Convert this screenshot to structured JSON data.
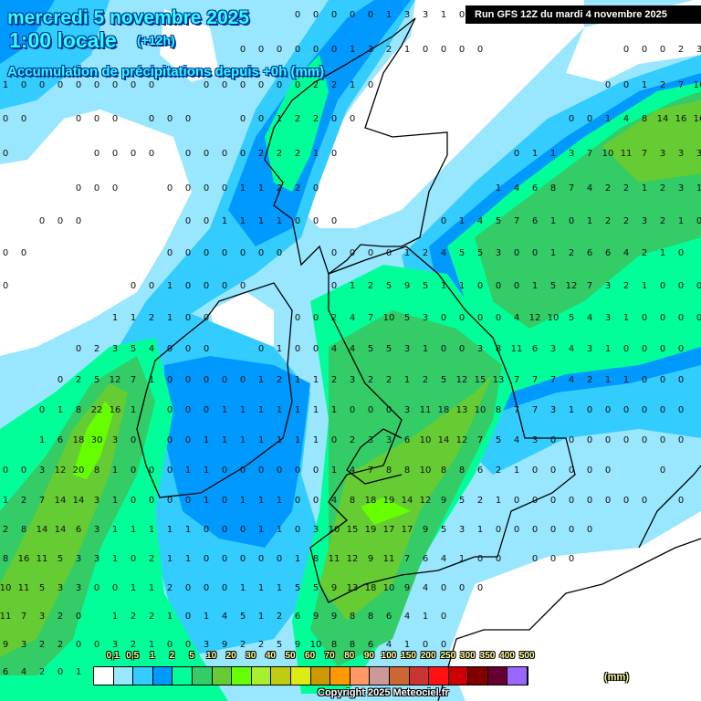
{
  "header": {
    "date": "mercredi 5 novembre 2025",
    "hour": "1:00 locale",
    "lead": "(+12h)",
    "subtitle": "Accumulation de précipitations depuis +0h (mm)",
    "run": "Run GFS 12Z du mardi 4 novembre 2025"
  },
  "legend": {
    "unit": "(mm)",
    "labels": [
      "0,1",
      "0,5",
      "1",
      "2",
      "5",
      "10",
      "20",
      "30",
      "40",
      "50",
      "60",
      "70",
      "80",
      "90",
      "100",
      "150",
      "200",
      "250",
      "300",
      "350",
      "400",
      "500"
    ],
    "colors": [
      "#ffffff",
      "#99e6ff",
      "#33ccff",
      "#0099ff",
      "#00ff99",
      "#33cc66",
      "#66cc33",
      "#66ff00",
      "#a6f02e",
      "#bfcc11",
      "#dded11",
      "#cc9900",
      "#ff9900",
      "#ff9966",
      "#cc9999",
      "#cc6633",
      "#cc3333",
      "#ff1111",
      "#cc0000",
      "#800000",
      "#660033",
      "#9966ff"
    ]
  },
  "copyright": "Copyright 2025 Meteociel.fr",
  "grid_values": [
    {
      "row": 0,
      "cells": {
        "16": "0",
        "17": "0",
        "18": "0",
        "19": "0",
        "20": "0",
        "21": "1",
        "22": "3",
        "23": "3",
        "24": "1",
        "25": "0"
      }
    },
    {
      "row": 1,
      "cells": {
        "13": "0",
        "14": "0",
        "15": "0",
        "16": "0",
        "17": "0",
        "18": "0",
        "19": "1",
        "20": "3",
        "21": "2",
        "22": "1",
        "23": "0",
        "24": "0",
        "25": "0",
        "26": "0",
        "34": "0",
        "35": "0",
        "36": "0",
        "37": "2",
        "38": "3"
      }
    },
    {
      "row": 2,
      "cells": {
        "0": "1",
        "1": "0",
        "2": "0",
        "3": "0",
        "4": "0",
        "5": "0",
        "6": "0",
        "7": "0",
        "8": "0",
        "11": "0",
        "12": "0",
        "13": "0",
        "14": "0",
        "15": "0",
        "16": "0",
        "17": "2",
        "18": "2",
        "19": "1",
        "20": "0",
        "33": "0",
        "34": "0",
        "35": "1",
        "36": "2",
        "37": "7",
        "38": "16"
      }
    },
    {
      "row": 3,
      "cells": {
        "0": "0",
        "1": "0",
        "4": "0",
        "5": "0",
        "6": "0",
        "8": "0",
        "9": "0",
        "10": "0",
        "13": "0",
        "14": "0",
        "15": "1",
        "16": "2",
        "17": "2",
        "18": "0",
        "19": "0",
        "31": "0",
        "32": "0",
        "33": "1",
        "34": "4",
        "35": "8",
        "36": "14",
        "37": "16",
        "38": "16"
      }
    },
    {
      "row": 4,
      "cells": {
        "0": "0",
        "5": "0",
        "6": "0",
        "7": "0",
        "8": "0",
        "10": "0",
        "11": "0",
        "12": "0",
        "13": "0",
        "14": "2",
        "15": "2",
        "16": "2",
        "17": "1",
        "18": "0",
        "28": "0",
        "29": "1",
        "30": "1",
        "31": "3",
        "32": "7",
        "33": "10",
        "34": "11",
        "35": "7",
        "36": "3",
        "37": "3",
        "38": "3"
      }
    },
    {
      "row": 5,
      "cells": {
        "4": "0",
        "5": "0",
        "6": "0",
        "9": "0",
        "10": "0",
        "11": "0",
        "12": "0",
        "13": "1",
        "14": "1",
        "15": "2",
        "16": "2",
        "17": "0",
        "27": "1",
        "28": "4",
        "29": "6",
        "30": "8",
        "31": "7",
        "32": "4",
        "33": "2",
        "34": "2",
        "35": "1",
        "36": "2",
        "37": "3",
        "38": "1"
      }
    },
    {
      "row": 6,
      "cells": {
        "2": "0",
        "3": "0",
        "4": "0",
        "10": "0",
        "11": "0",
        "12": "1",
        "13": "1",
        "14": "1",
        "15": "1",
        "16": "0",
        "17": "0",
        "18": "0",
        "24": "0",
        "25": "1",
        "26": "4",
        "27": "5",
        "28": "7",
        "29": "6",
        "30": "1",
        "31": "0",
        "32": "1",
        "33": "2",
        "34": "2",
        "35": "3",
        "36": "2",
        "37": "1",
        "38": "0"
      }
    },
    {
      "row": 7,
      "cells": {
        "0": "0",
        "1": "0",
        "9": "0",
        "10": "0",
        "11": "0",
        "12": "0",
        "13": "0",
        "14": "0",
        "15": "0",
        "18": "0",
        "19": "0",
        "20": "0",
        "21": "0",
        "22": "1",
        "23": "2",
        "24": "4",
        "25": "5",
        "26": "5",
        "27": "3",
        "28": "0",
        "29": "0",
        "30": "1",
        "31": "2",
        "32": "6",
        "33": "6",
        "34": "4",
        "35": "2",
        "36": "1",
        "37": "0"
      }
    },
    {
      "row": 8,
      "cells": {
        "0": "0",
        "7": "0",
        "8": "0",
        "9": "1",
        "10": "0",
        "11": "0",
        "12": "0",
        "13": "0",
        "18": "0",
        "19": "1",
        "20": "2",
        "21": "5",
        "22": "9",
        "23": "5",
        "24": "1",
        "25": "1",
        "26": "0",
        "27": "0",
        "28": "0",
        "29": "1",
        "30": "5",
        "31": "12",
        "32": "7",
        "33": "3",
        "34": "2",
        "35": "1",
        "36": "0",
        "37": "0",
        "38": "0"
      }
    },
    {
      "row": 9,
      "cells": {
        "6": "1",
        "7": "1",
        "8": "2",
        "9": "1",
        "10": "0",
        "11": "0",
        "16": "0",
        "17": "0",
        "18": "2",
        "19": "4",
        "20": "7",
        "21": "10",
        "22": "5",
        "23": "3",
        "24": "0",
        "25": "0",
        "26": "0",
        "27": "0",
        "28": "4",
        "29": "12",
        "30": "10",
        "31": "5",
        "32": "4",
        "33": "3",
        "34": "1",
        "35": "0",
        "36": "0",
        "37": "0",
        "38": "0"
      }
    },
    {
      "row": 10,
      "cells": {
        "4": "0",
        "5": "2",
        "6": "3",
        "7": "5",
        "8": "4",
        "9": "0",
        "10": "0",
        "11": "0",
        "14": "0",
        "15": "1",
        "16": "0",
        "17": "0",
        "18": "4",
        "19": "4",
        "20": "5",
        "21": "5",
        "22": "3",
        "23": "1",
        "24": "0",
        "25": "0",
        "26": "3",
        "27": "8",
        "28": "11",
        "29": "6",
        "30": "3",
        "31": "4",
        "32": "3",
        "33": "1",
        "34": "0",
        "35": "0",
        "36": "0",
        "37": "0"
      }
    },
    {
      "row": 11,
      "cells": {
        "3": "0",
        "4": "2",
        "5": "5",
        "6": "12",
        "7": "7",
        "8": "1",
        "9": "0",
        "10": "0",
        "11": "0",
        "12": "0",
        "13": "0",
        "14": "1",
        "15": "2",
        "16": "1",
        "17": "1",
        "18": "2",
        "19": "3",
        "20": "2",
        "21": "2",
        "22": "1",
        "23": "2",
        "24": "5",
        "25": "12",
        "26": "15",
        "27": "13",
        "28": "7",
        "29": "7",
        "30": "7",
        "31": "4",
        "32": "2",
        "33": "1",
        "34": "1",
        "35": "0",
        "36": "0",
        "37": "0"
      }
    },
    {
      "row": 12,
      "cells": {
        "2": "0",
        "3": "1",
        "4": "8",
        "5": "22",
        "6": "16",
        "7": "1",
        "9": "0",
        "10": "0",
        "11": "0",
        "12": "1",
        "13": "1",
        "14": "1",
        "15": "1",
        "16": "1",
        "17": "1",
        "18": "1",
        "19": "0",
        "20": "0",
        "21": "0",
        "22": "3",
        "23": "11",
        "24": "18",
        "25": "13",
        "26": "10",
        "27": "8",
        "28": "7",
        "29": "7",
        "30": "3",
        "31": "1",
        "32": "0",
        "33": "0",
        "34": "0",
        "35": "0",
        "36": "0",
        "37": "0"
      }
    },
    {
      "row": 13,
      "cells": {
        "2": "1",
        "3": "6",
        "4": "18",
        "5": "30",
        "6": "3",
        "7": "0",
        "9": "0",
        "10": "0",
        "11": "1",
        "12": "1",
        "13": "1",
        "14": "1",
        "15": "1",
        "16": "1",
        "17": "1",
        "18": "0",
        "19": "2",
        "20": "3",
        "21": "3",
        "22": "6",
        "23": "10",
        "24": "14",
        "25": "12",
        "26": "7",
        "27": "5",
        "28": "4",
        "29": "3",
        "30": "0",
        "31": "0",
        "32": "0",
        "33": "0",
        "34": "0",
        "35": "0",
        "36": "0",
        "37": "0"
      }
    },
    {
      "row": 14,
      "cells": {
        "0": "0",
        "1": "0",
        "2": "3",
        "3": "12",
        "4": "20",
        "5": "8",
        "6": "1",
        "7": "0",
        "8": "0",
        "9": "0",
        "10": "1",
        "11": "1",
        "12": "0",
        "13": "0",
        "14": "0",
        "15": "0",
        "16": "0",
        "17": "0",
        "18": "1",
        "19": "4",
        "20": "7",
        "21": "8",
        "22": "8",
        "23": "10",
        "24": "8",
        "25": "8",
        "26": "6",
        "27": "2",
        "28": "1",
        "29": "0",
        "30": "0",
        "31": "0",
        "32": "0",
        "33": "0",
        "36": "0"
      }
    },
    {
      "row": 15,
      "cells": {
        "0": "1",
        "1": "2",
        "2": "7",
        "3": "14",
        "4": "14",
        "5": "3",
        "6": "1",
        "7": "0",
        "8": "0",
        "9": "0",
        "10": "0",
        "11": "1",
        "12": "0",
        "13": "1",
        "14": "1",
        "15": "1",
        "16": "0",
        "17": "0",
        "18": "4",
        "19": "8",
        "20": "18",
        "21": "19",
        "22": "14",
        "23": "12",
        "24": "9",
        "25": "5",
        "26": "2",
        "27": "1",
        "28": "0",
        "29": "0",
        "30": "0",
        "31": "0",
        "32": "0",
        "33": "0",
        "34": "0",
        "35": "0",
        "37": "0"
      }
    },
    {
      "row": 16,
      "cells": {
        "0": "2",
        "1": "8",
        "2": "14",
        "3": "14",
        "4": "6",
        "5": "3",
        "6": "1",
        "7": "1",
        "8": "1",
        "9": "1",
        "10": "1",
        "11": "0",
        "12": "0",
        "13": "0",
        "14": "1",
        "15": "1",
        "16": "0",
        "17": "3",
        "18": "10",
        "19": "15",
        "20": "19",
        "21": "17",
        "22": "17",
        "23": "9",
        "24": "5",
        "25": "3",
        "26": "1",
        "27": "0",
        "28": "0",
        "29": "0",
        "30": "0",
        "31": "0",
        "32": "0"
      }
    },
    {
      "row": 17,
      "cells": {
        "0": "8",
        "1": "16",
        "2": "11",
        "3": "5",
        "4": "3",
        "5": "3",
        "6": "1",
        "7": "0",
        "8": "2",
        "9": "1",
        "10": "1",
        "11": "0",
        "12": "0",
        "13": "0",
        "14": "0",
        "15": "0",
        "16": "1",
        "17": "8",
        "18": "11",
        "19": "12",
        "20": "9",
        "21": "11",
        "22": "7",
        "23": "6",
        "24": "4",
        "25": "1",
        "26": "0",
        "27": "0",
        "29": "0",
        "30": "0",
        "31": "0"
      }
    },
    {
      "row": 18,
      "cells": {
        "0": "10",
        "1": "11",
        "2": "5",
        "3": "3",
        "4": "3",
        "5": "0",
        "6": "0",
        "7": "1",
        "8": "1",
        "9": "2",
        "10": "0",
        "11": "0",
        "12": "0",
        "13": "1",
        "14": "1",
        "15": "1",
        "16": "5",
        "17": "5",
        "18": "9",
        "19": "13",
        "20": "18",
        "21": "10",
        "22": "9",
        "23": "4",
        "24": "0",
        "25": "0",
        "26": "0"
      }
    },
    {
      "row": 19,
      "cells": {
        "0": "11",
        "1": "7",
        "2": "3",
        "3": "2",
        "4": "0",
        "6": "1",
        "7": "2",
        "8": "2",
        "9": "1",
        "10": "0",
        "11": "1",
        "12": "4",
        "13": "5",
        "14": "1",
        "15": "2",
        "16": "6",
        "17": "9",
        "18": "9",
        "19": "8",
        "20": "8",
        "21": "6",
        "22": "4",
        "23": "1",
        "24": "0"
      }
    },
    {
      "row": 20,
      "cells": {
        "0": "9",
        "1": "3",
        "2": "2",
        "3": "2",
        "4": "0",
        "5": "0",
        "6": "3",
        "7": "2",
        "8": "1",
        "9": "0",
        "10": "0",
        "11": "3",
        "12": "9",
        "13": "2",
        "14": "2",
        "15": "5",
        "16": "9",
        "17": "10",
        "18": "8",
        "19": "8",
        "20": "6",
        "21": "4",
        "22": "1",
        "23": "0",
        "24": "0"
      }
    },
    {
      "row": 21,
      "cells": {
        "0": "6",
        "1": "4",
        "2": "2",
        "3": "0",
        "4": "1"
      }
    }
  ]
}
